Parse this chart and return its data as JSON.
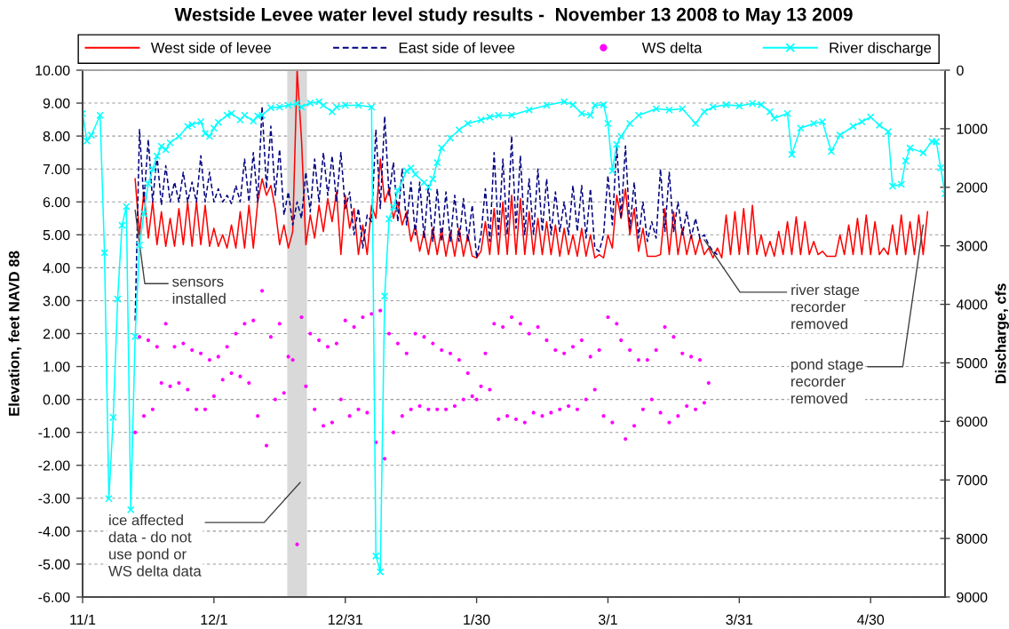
{
  "chart_data": {
    "type": "line",
    "title": "Westside Levee water level study results -  November 13 2008 to May 13 2009",
    "ylabel": "Elevation, feet NAVD 88",
    "y2label": "Discharge, cfs",
    "x": [
      "2008-11-13",
      "2008-11-14",
      "2008-11-15",
      "2008-11-16",
      "2008-11-17",
      "2008-11-18",
      "2008-11-19",
      "2008-11-20",
      "2008-11-21",
      "2008-11-22",
      "2008-11-23",
      "2008-11-24",
      "2008-11-25",
      "2008-11-26",
      "2008-11-27",
      "2008-11-28",
      "2008-11-29",
      "2008-11-30",
      "2008-12-01",
      "2008-12-02",
      "2008-12-03",
      "2008-12-04",
      "2008-12-05",
      "2008-12-06",
      "2008-12-07",
      "2008-12-08",
      "2008-12-09",
      "2008-12-10",
      "2008-12-11",
      "2008-12-12",
      "2008-12-13",
      "2008-12-14",
      "2008-12-15",
      "2008-12-16",
      "2008-12-17",
      "2008-12-18",
      "2008-12-19",
      "2008-12-20",
      "2008-12-21",
      "2008-12-22",
      "2008-12-23",
      "2008-12-24",
      "2008-12-25",
      "2008-12-26",
      "2008-12-27",
      "2008-12-28",
      "2008-12-29",
      "2008-12-30",
      "2008-12-31",
      "2009-01-01",
      "2009-01-02",
      "2009-01-03",
      "2009-01-04",
      "2009-01-05",
      "2009-01-06",
      "2009-01-07",
      "2009-01-08",
      "2009-01-09",
      "2009-01-10",
      "2009-01-11",
      "2009-01-12",
      "2009-01-13",
      "2009-01-14",
      "2009-01-15",
      "2009-01-16",
      "2009-01-17",
      "2009-01-18",
      "2009-01-19",
      "2009-01-20",
      "2009-01-21",
      "2009-01-22",
      "2009-01-23",
      "2009-01-24",
      "2009-01-25",
      "2009-01-26",
      "2009-01-27",
      "2009-01-28",
      "2009-01-29",
      "2009-01-30",
      "2009-01-31",
      "2009-02-01",
      "2009-02-02",
      "2009-02-03",
      "2009-02-04",
      "2009-02-05",
      "2009-02-06",
      "2009-02-07",
      "2009-02-08",
      "2009-02-09",
      "2009-02-10",
      "2009-02-11",
      "2009-02-12",
      "2009-02-13",
      "2009-02-14",
      "2009-02-15",
      "2009-02-16",
      "2009-02-17",
      "2009-02-18",
      "2009-02-19",
      "2009-02-20",
      "2009-02-21",
      "2009-02-22",
      "2009-02-23",
      "2009-02-24",
      "2009-02-25",
      "2009-02-26",
      "2009-02-27",
      "2009-02-28",
      "2009-03-01",
      "2009-03-02",
      "2009-03-03",
      "2009-03-04",
      "2009-03-05",
      "2009-03-06",
      "2009-03-07",
      "2009-03-08",
      "2009-03-09",
      "2009-03-10",
      "2009-03-11",
      "2009-03-12",
      "2009-03-13",
      "2009-03-14",
      "2009-03-15",
      "2009-03-16",
      "2009-03-17",
      "2009-03-18",
      "2009-03-19",
      "2009-03-20",
      "2009-03-21",
      "2009-03-22",
      "2009-03-23",
      "2009-03-24",
      "2009-03-25",
      "2009-03-26",
      "2009-03-27",
      "2009-03-28",
      "2009-03-29",
      "2009-03-30",
      "2009-03-31",
      "2009-04-01",
      "2009-04-02",
      "2009-04-03",
      "2009-04-04",
      "2009-04-05",
      "2009-04-06",
      "2009-04-07",
      "2009-04-08",
      "2009-04-09",
      "2009-04-10",
      "2009-04-11",
      "2009-04-12",
      "2009-04-13",
      "2009-04-14",
      "2009-04-15",
      "2009-04-16",
      "2009-04-17",
      "2009-04-18",
      "2009-04-19",
      "2009-04-20",
      "2009-04-21",
      "2009-04-22",
      "2009-04-23",
      "2009-04-24",
      "2009-04-25",
      "2009-04-26",
      "2009-04-27",
      "2009-04-28",
      "2009-04-29",
      "2009-04-30",
      "2009-05-01",
      "2009-05-02",
      "2009-05-03",
      "2009-05-04",
      "2009-05-05",
      "2009-05-06",
      "2009-05-07",
      "2009-05-08",
      "2009-05-09",
      "2009-05-10",
      "2009-05-11",
      "2009-05-12",
      "2009-05-13"
    ],
    "xlim": [
      "2008-11-01",
      "2009-05-17"
    ],
    "xticks": [
      {
        "value": "2008-11-01",
        "label": "11/1"
      },
      {
        "value": "2008-12-01",
        "label": "12/1"
      },
      {
        "value": "2008-12-31",
        "label": "12/31"
      },
      {
        "value": "2009-01-30",
        "label": "1/30"
      },
      {
        "value": "2009-03-01",
        "label": "3/1"
      },
      {
        "value": "2009-03-31",
        "label": "3/31"
      },
      {
        "value": "2009-04-30",
        "label": "4/30"
      }
    ],
    "ylim": [
      -6,
      10
    ],
    "yticks": [
      {
        "value": 10,
        "label": "10.00"
      },
      {
        "value": 9,
        "label": "9.00"
      },
      {
        "value": 8,
        "label": "8.00"
      },
      {
        "value": 7,
        "label": "7.00"
      },
      {
        "value": 6,
        "label": "6.00"
      },
      {
        "value": 5,
        "label": "5.00"
      },
      {
        "value": 4,
        "label": "4.00"
      },
      {
        "value": 3,
        "label": "3.00"
      },
      {
        "value": 2,
        "label": "2.00"
      },
      {
        "value": 1,
        "label": "1.00"
      },
      {
        "value": 0,
        "label": "0.00"
      },
      {
        "value": -1,
        "label": "-1.00"
      },
      {
        "value": -2,
        "label": "-2.00"
      },
      {
        "value": -3,
        "label": "-3.00"
      },
      {
        "value": -4,
        "label": "-4.00"
      },
      {
        "value": -5,
        "label": "-5.00"
      },
      {
        "value": -6,
        "label": "-6.00"
      }
    ],
    "y2lim": [
      9000,
      0
    ],
    "y2ticks": [
      0,
      1000,
      2000,
      3000,
      4000,
      5000,
      6000,
      7000,
      8000,
      9000
    ],
    "grid": "y",
    "legend": "top",
    "series": [
      {
        "name": "West side of levee",
        "color": "#ff0000",
        "line_style": "solid",
        "marker": "none",
        "values": [
          6.7,
          5.0,
          6.3,
          4.9,
          6.0,
          4.7,
          5.7,
          4.65,
          5.5,
          4.65,
          5.8,
          4.7,
          6.0,
          4.65,
          6.0,
          4.7,
          5.9,
          4.65,
          5.2,
          4.65,
          5.0,
          4.6,
          5.3,
          4.6,
          5.7,
          4.6,
          5.9,
          4.6,
          6.0,
          6.7,
          6.2,
          6.5,
          5.8,
          4.7,
          5.3,
          4.6,
          5.1,
          10.0,
          7.9,
          4.7,
          5.6,
          4.9,
          5.9,
          5.1,
          6.1,
          5.4,
          6.3,
          4.4,
          6.2,
          5.2,
          5.8,
          4.4,
          5.3,
          4.4,
          5.9,
          5.5,
          7.3,
          6.0,
          6.4,
          5.5,
          6.0,
          5.3,
          5.7,
          4.8,
          5.3,
          4.5,
          5.1,
          4.4,
          5.2,
          4.4,
          5.2,
          4.35,
          5.1,
          4.35,
          5.2,
          4.35,
          5.0,
          4.35,
          4.3,
          4.5,
          5.4,
          4.4,
          5.8,
          4.4,
          6.0,
          4.4,
          6.2,
          4.4,
          6.1,
          4.4,
          5.7,
          4.4,
          5.5,
          4.4,
          5.4,
          4.4,
          5.3,
          4.35,
          5.2,
          4.4,
          5.0,
          4.35,
          5.2,
          4.35,
          5.0,
          4.3,
          4.4,
          4.3,
          5.0,
          4.6,
          6.2,
          5.5,
          6.4,
          5.0,
          5.8,
          4.5,
          5.2,
          4.35,
          4.35,
          4.35,
          4.4,
          5.8,
          4.4,
          5.7,
          4.4,
          5.2,
          4.4,
          5.0,
          4.4,
          4.9,
          4.4,
          4.6,
          4.3,
          4.6,
          4.3,
          5.6,
          4.4,
          5.7,
          4.4,
          5.8,
          4.4,
          5.9,
          4.4,
          5.0,
          4.35,
          4.8,
          4.35,
          5.1,
          4.4,
          5.4,
          4.4,
          5.55,
          4.4,
          5.4,
          4.4,
          4.8,
          4.4,
          4.5,
          4.35,
          4.35,
          4.35,
          5.0,
          4.4,
          5.3,
          4.4,
          5.5,
          4.4,
          5.6,
          4.4,
          5.4,
          4.4,
          4.6,
          4.4,
          5.3,
          4.4,
          5.6,
          4.4,
          5.4,
          4.4,
          5.6,
          4.4,
          5.7
        ]
      },
      {
        "name": "East side of levee",
        "color": "#000080",
        "line_style": "dashed",
        "marker": "none",
        "values": [
          2.4,
          8.2,
          6.0,
          7.9,
          6.0,
          7.4,
          5.9,
          7.1,
          6.0,
          6.6,
          6.0,
          6.9,
          6.0,
          6.6,
          6.0,
          7.4,
          6.0,
          6.9,
          6.0,
          6.4,
          6.0,
          6.2,
          5.95,
          6.5,
          6.0,
          7.3,
          6.0,
          7.5,
          6.0,
          8.9,
          6.4,
          8.3,
          6.2,
          7.6,
          5.6,
          6.3,
          5.3,
          6.0,
          5.5,
          6.9,
          5.7,
          7.3,
          6.0,
          7.5,
          6.2,
          7.4,
          6.0,
          7.5,
          5.8,
          6.3,
          5.0,
          5.8,
          4.6,
          5.6,
          5.4,
          8.2,
          5.8,
          8.6,
          6.2,
          7.2,
          5.4,
          7.0,
          5.3,
          6.6,
          5.0,
          6.6,
          4.9,
          6.5,
          4.8,
          6.4,
          4.8,
          6.3,
          4.8,
          6.2,
          4.8,
          6.1,
          4.8,
          5.9,
          4.3,
          5.0,
          6.4,
          4.8,
          7.5,
          5.0,
          7.3,
          5.0,
          8.0,
          5.2,
          7.4,
          5.0,
          6.7,
          5.0,
          7.0,
          5.1,
          6.7,
          5.0,
          6.3,
          5.1,
          6.0,
          5.0,
          6.5,
          5.1,
          6.5,
          4.9,
          6.4,
          4.6,
          4.5,
          5.0,
          6.8,
          5.3,
          7.7,
          5.5,
          7.7,
          5.2,
          6.6,
          4.9,
          6.0,
          4.8,
          5.4,
          4.9,
          7.0,
          5.1,
          6.9,
          5.1,
          6.0,
          5.0,
          5.7,
          4.9,
          5.5,
          4.9,
          5.0,
          4.7,
          4.5,
          4.4,
          null,
          null,
          null,
          null,
          null,
          null,
          null,
          null,
          null,
          null,
          null,
          null,
          null,
          null,
          null,
          null,
          null,
          null,
          null,
          null,
          null,
          null,
          null,
          null,
          null,
          null,
          null,
          null,
          null,
          null,
          null,
          null,
          null,
          null,
          null,
          null,
          null,
          null,
          null,
          null,
          null,
          null,
          null,
          null,
          null,
          null,
          null,
          null
        ]
      },
      {
        "name": "WS delta",
        "type": "scatter",
        "color": "#ff00ff",
        "marker": "circle",
        "values": [
          -1.0,
          1.9,
          -0.5,
          1.8,
          -0.3,
          1.6,
          0.5,
          2.3,
          0.4,
          1.6,
          0.5,
          1.7,
          0.3,
          1.5,
          -0.3,
          1.4,
          -0.3,
          1.2,
          0.1,
          1.3,
          0.6,
          1.6,
          0.8,
          2.0,
          0.7,
          2.3,
          0.5,
          2.4,
          -0.5,
          3.3,
          -1.4,
          1.9,
          0.0,
          2.3,
          0.2,
          1.3,
          1.2,
          -4.4,
          2.5,
          0.4,
          2.0,
          -0.3,
          1.8,
          -0.8,
          1.6,
          -0.7,
          1.7,
          0.0,
          2.4,
          -0.5,
          2.2,
          -0.3,
          2.5,
          -0.4,
          2.6,
          -1.3,
          2.7,
          -1.8,
          2.0,
          -1.0,
          1.7,
          -0.5,
          1.4,
          -0.3,
          2.0,
          -0.2,
          1.9,
          -0.3,
          1.7,
          -0.3,
          1.5,
          -0.3,
          1.4,
          -0.2,
          1.2,
          0.0,
          0.8,
          0.1,
          0.0,
          0.4,
          1.4,
          0.3,
          2.3,
          -0.6,
          2.2,
          -0.5,
          2.5,
          -0.6,
          2.3,
          -0.7,
          2.0,
          -0.4,
          2.2,
          -0.5,
          1.8,
          -0.4,
          1.5,
          -0.3,
          1.4,
          -0.2,
          1.6,
          -0.3,
          1.8,
          0.0,
          1.3,
          0.3,
          1.5,
          -0.5,
          2.5,
          -0.7,
          2.3,
          1.8,
          -1.2,
          1.5,
          -0.8,
          1.2,
          -0.3,
          1.2,
          0.0,
          1.5,
          -0.4,
          2.2,
          -0.7,
          1.9,
          -0.5,
          1.4,
          -0.2,
          1.3,
          -0.3,
          1.2,
          -0.1,
          0.5,
          null,
          null,
          null,
          null,
          null,
          null,
          null,
          null,
          null,
          null,
          null,
          null,
          null,
          null,
          null,
          null,
          null,
          null,
          null,
          null,
          null,
          null,
          null,
          null,
          null,
          null,
          null,
          null,
          null,
          null,
          null,
          null,
          null,
          null,
          null,
          null,
          null,
          null,
          null,
          null,
          null,
          null,
          null,
          null,
          null,
          null,
          null,
          null,
          null,
          null
        ]
      },
      {
        "name": "River discharge",
        "color": "#00ffff",
        "axis": "y2",
        "line_style": "solid",
        "marker": "cross",
        "x": [
          "2008-11-01",
          "2008-11-02",
          "2008-11-03",
          "2008-11-05",
          "2008-11-06",
          "2008-11-07",
          "2008-11-08",
          "2008-11-09",
          "2008-11-10",
          "2008-11-11",
          "2008-11-12",
          "2008-11-13",
          "2008-11-14",
          "2008-11-15",
          "2008-11-16",
          "2008-11-17",
          "2008-11-18",
          "2008-11-19",
          "2008-11-20",
          "2008-11-21",
          "2008-11-23",
          "2008-11-25",
          "2008-11-26",
          "2008-11-28",
          "2008-11-29",
          "2008-11-30",
          "2008-12-01",
          "2008-12-02",
          "2008-12-04",
          "2008-12-05",
          "2008-12-07",
          "2008-12-08",
          "2008-12-10",
          "2008-12-11",
          "2008-12-12",
          "2008-12-14",
          "2008-12-16",
          "2008-12-18",
          "2008-12-20",
          "2008-12-21",
          "2008-12-23",
          "2008-12-25",
          "2008-12-26",
          "2008-12-28",
          "2008-12-29",
          "2008-12-31",
          "2009-01-03",
          "2009-01-06",
          "2009-01-07",
          "2009-01-08",
          "2009-01-09",
          "2009-01-10",
          "2009-01-11",
          "2009-01-12",
          "2009-01-14",
          "2009-01-15",
          "2009-01-16",
          "2009-01-18",
          "2009-01-19",
          "2009-01-20",
          "2009-01-21",
          "2009-01-22",
          "2009-01-24",
          "2009-01-26",
          "2009-01-28",
          "2009-01-31",
          "2009-02-02",
          "2009-02-04",
          "2009-02-07",
          "2009-02-11",
          "2009-02-15",
          "2009-02-19",
          "2009-02-21",
          "2009-02-23",
          "2009-02-25",
          "2009-02-26",
          "2009-02-28",
          "2009-03-01",
          "2009-03-02",
          "2009-03-03",
          "2009-03-04",
          "2009-03-06",
          "2009-03-08",
          "2009-03-12",
          "2009-03-15",
          "2009-03-18",
          "2009-03-21",
          "2009-03-23",
          "2009-03-25",
          "2009-03-28",
          "2009-03-31",
          "2009-04-03",
          "2009-04-05",
          "2009-04-07",
          "2009-04-08",
          "2009-04-11",
          "2009-04-12",
          "2009-04-14",
          "2009-04-17",
          "2009-04-19",
          "2009-04-21",
          "2009-04-23",
          "2009-04-26",
          "2009-04-28",
          "2009-04-30",
          "2009-05-02",
          "2009-05-04",
          "2009-05-05",
          "2009-05-07",
          "2009-05-08",
          "2009-05-09",
          "2009-05-12",
          "2009-05-14",
          "2009-05-15",
          "2009-05-16",
          "2009-05-17"
        ],
        "values": [
          740,
          1210,
          1110,
          770,
          3120,
          7320,
          5930,
          3910,
          2650,
          2330,
          7510,
          4550,
          2990,
          2450,
          1940,
          1690,
          1470,
          1300,
          1360,
          1240,
          1130,
          960,
          930,
          880,
          1080,
          1130,
          990,
          890,
          770,
          740,
          850,
          770,
          870,
          780,
          770,
          640,
          630,
          600,
          570,
          630,
          560,
          540,
          600,
          710,
          630,
          600,
          600,
          630,
          8300,
          8570,
          3860,
          2540,
          2340,
          2060,
          1720,
          1670,
          1780,
          1920,
          2000,
          1860,
          1580,
          1330,
          1160,
          1020,
          910,
          850,
          800,
          770,
          770,
          680,
          600,
          540,
          590,
          740,
          770,
          600,
          590,
          910,
          1720,
          1270,
          1130,
          910,
          770,
          660,
          680,
          660,
          910,
          710,
          630,
          590,
          610,
          570,
          590,
          710,
          820,
          740,
          1440,
          990,
          910,
          880,
          1390,
          1110,
          960,
          880,
          800,
          940,
          1050,
          1980,
          1950,
          1550,
          1330,
          1410,
          1220,
          1220,
          1670,
          2110
        ]
      }
    ],
    "bands": [
      {
        "axis": "x",
        "from": "2008-12-17T18:00",
        "to": "2008-12-22T06:00",
        "color": "#d9d9d9"
      }
    ],
    "annotations": [
      {
        "text": "sensors\ninstalled",
        "x": "2008-11-13",
        "y": 5.75
      },
      "ice affected\ndata - do not\nuse pond or\nWS delta data",
      {
        "text": "river stage\nrecorder\nremoved",
        "x": "2009-03-23",
        "y": 4.85
      },
      {
        "text": "pond stage\nrecorder\nremoved",
        "x": "2009-05-12",
        "y": 5.3
      }
    ]
  }
}
